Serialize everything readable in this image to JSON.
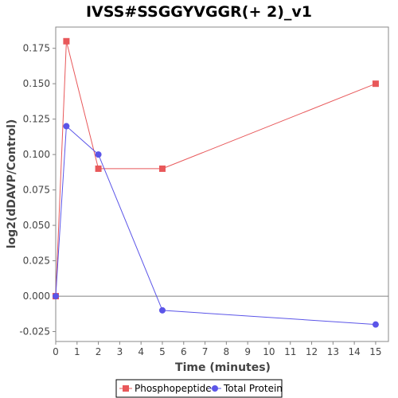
{
  "chart_data": {
    "type": "line",
    "title": "IVSS#SSGGYVGGR(+ 2)_v1",
    "xlabel": "Time (minutes)",
    "ylabel": "log2(dDAVP/Control)",
    "xlim": [
      0,
      15.6
    ],
    "ylim": [
      -0.032,
      0.19
    ],
    "x_ticks": [
      0,
      1,
      2,
      3,
      4,
      5,
      6,
      7,
      8,
      9,
      10,
      11,
      12,
      13,
      14,
      15
    ],
    "x_tick_labels": [
      "0",
      "1",
      "2",
      "3",
      "4",
      "5",
      "6",
      "7",
      "8",
      "9",
      "10",
      "11",
      "12",
      "13",
      "14",
      "15"
    ],
    "y_ticks": [
      -0.025,
      0.0,
      0.025,
      0.05,
      0.075,
      0.1,
      0.125,
      0.15,
      0.175
    ],
    "y_tick_labels": [
      "-0.025",
      "0.000",
      "0.025",
      "0.050",
      "0.075",
      "0.100",
      "0.125",
      "0.150",
      "0.175"
    ],
    "grid": false,
    "zero_line": true,
    "legend_position": "bottom",
    "series": [
      {
        "name": "Phosphopeptide",
        "color": "#e8585a",
        "marker": "square",
        "x": [
          0,
          0.5,
          2,
          5,
          15
        ],
        "y": [
          0.0,
          0.18,
          0.09,
          0.09,
          0.15
        ]
      },
      {
        "name": "Total Protein",
        "color": "#5b55e8",
        "marker": "circle",
        "x": [
          0,
          0.5,
          2,
          5,
          15
        ],
        "y": [
          0.0,
          0.12,
          0.1,
          -0.01,
          -0.02
        ]
      }
    ]
  }
}
